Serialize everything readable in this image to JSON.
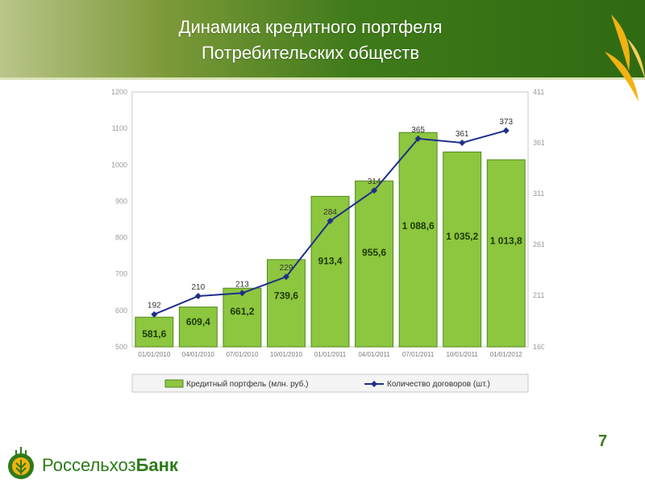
{
  "header": {
    "title_line1": "Динамика кредитного портфеля",
    "title_line2": "Потребительских обществ"
  },
  "page_number": "7",
  "logo": {
    "part1": "Россельхоз",
    "part2": "Банк"
  },
  "colors": {
    "bar": "#8dc63f",
    "bar_stroke": "#4f8a1f",
    "line": "#1f2f8a",
    "header": "#3f7a1a",
    "accent": "#f2b211"
  },
  "chart_data": {
    "type": "bar",
    "categories": [
      "01/01/2010",
      "04/01/2010",
      "07/01/2010",
      "10/01/2010",
      "01/01/2011",
      "04/01/2011",
      "07/01/2011",
      "10/01/2011",
      "01/01/2012"
    ],
    "bar_labels": [
      "581,6",
      "609,4",
      "661,2",
      "739,6",
      "913,4",
      "955,6",
      "1 088,6",
      "1 035,2",
      "1 013,8"
    ],
    "series": [
      {
        "name": "Кредитный портфель (млн. руб.)",
        "type": "bar",
        "axis": "left",
        "values": [
          581.6,
          609.4,
          661.2,
          739.6,
          913.4,
          955.6,
          1088.6,
          1035.2,
          1013.8
        ]
      },
      {
        "name": "Количество договоров (шт.)",
        "type": "line",
        "axis": "right",
        "values": [
          192,
          210,
          213,
          229,
          284,
          314,
          365,
          361,
          373
        ],
        "labels": [
          "192",
          "210",
          "213",
          "229",
          "284",
          "314",
          "365",
          "361",
          "373"
        ]
      }
    ],
    "ylim_left": [
      500,
      1200
    ],
    "yticks_left": [
      "500",
      "600",
      "700",
      "800",
      "900",
      "1000",
      "1100",
      "1200"
    ],
    "ylim_right": [
      160,
      411
    ],
    "yticks_right": [
      "160",
      "211",
      "261",
      "311",
      "361",
      "411"
    ],
    "legend_position": "bottom",
    "grid": false
  }
}
